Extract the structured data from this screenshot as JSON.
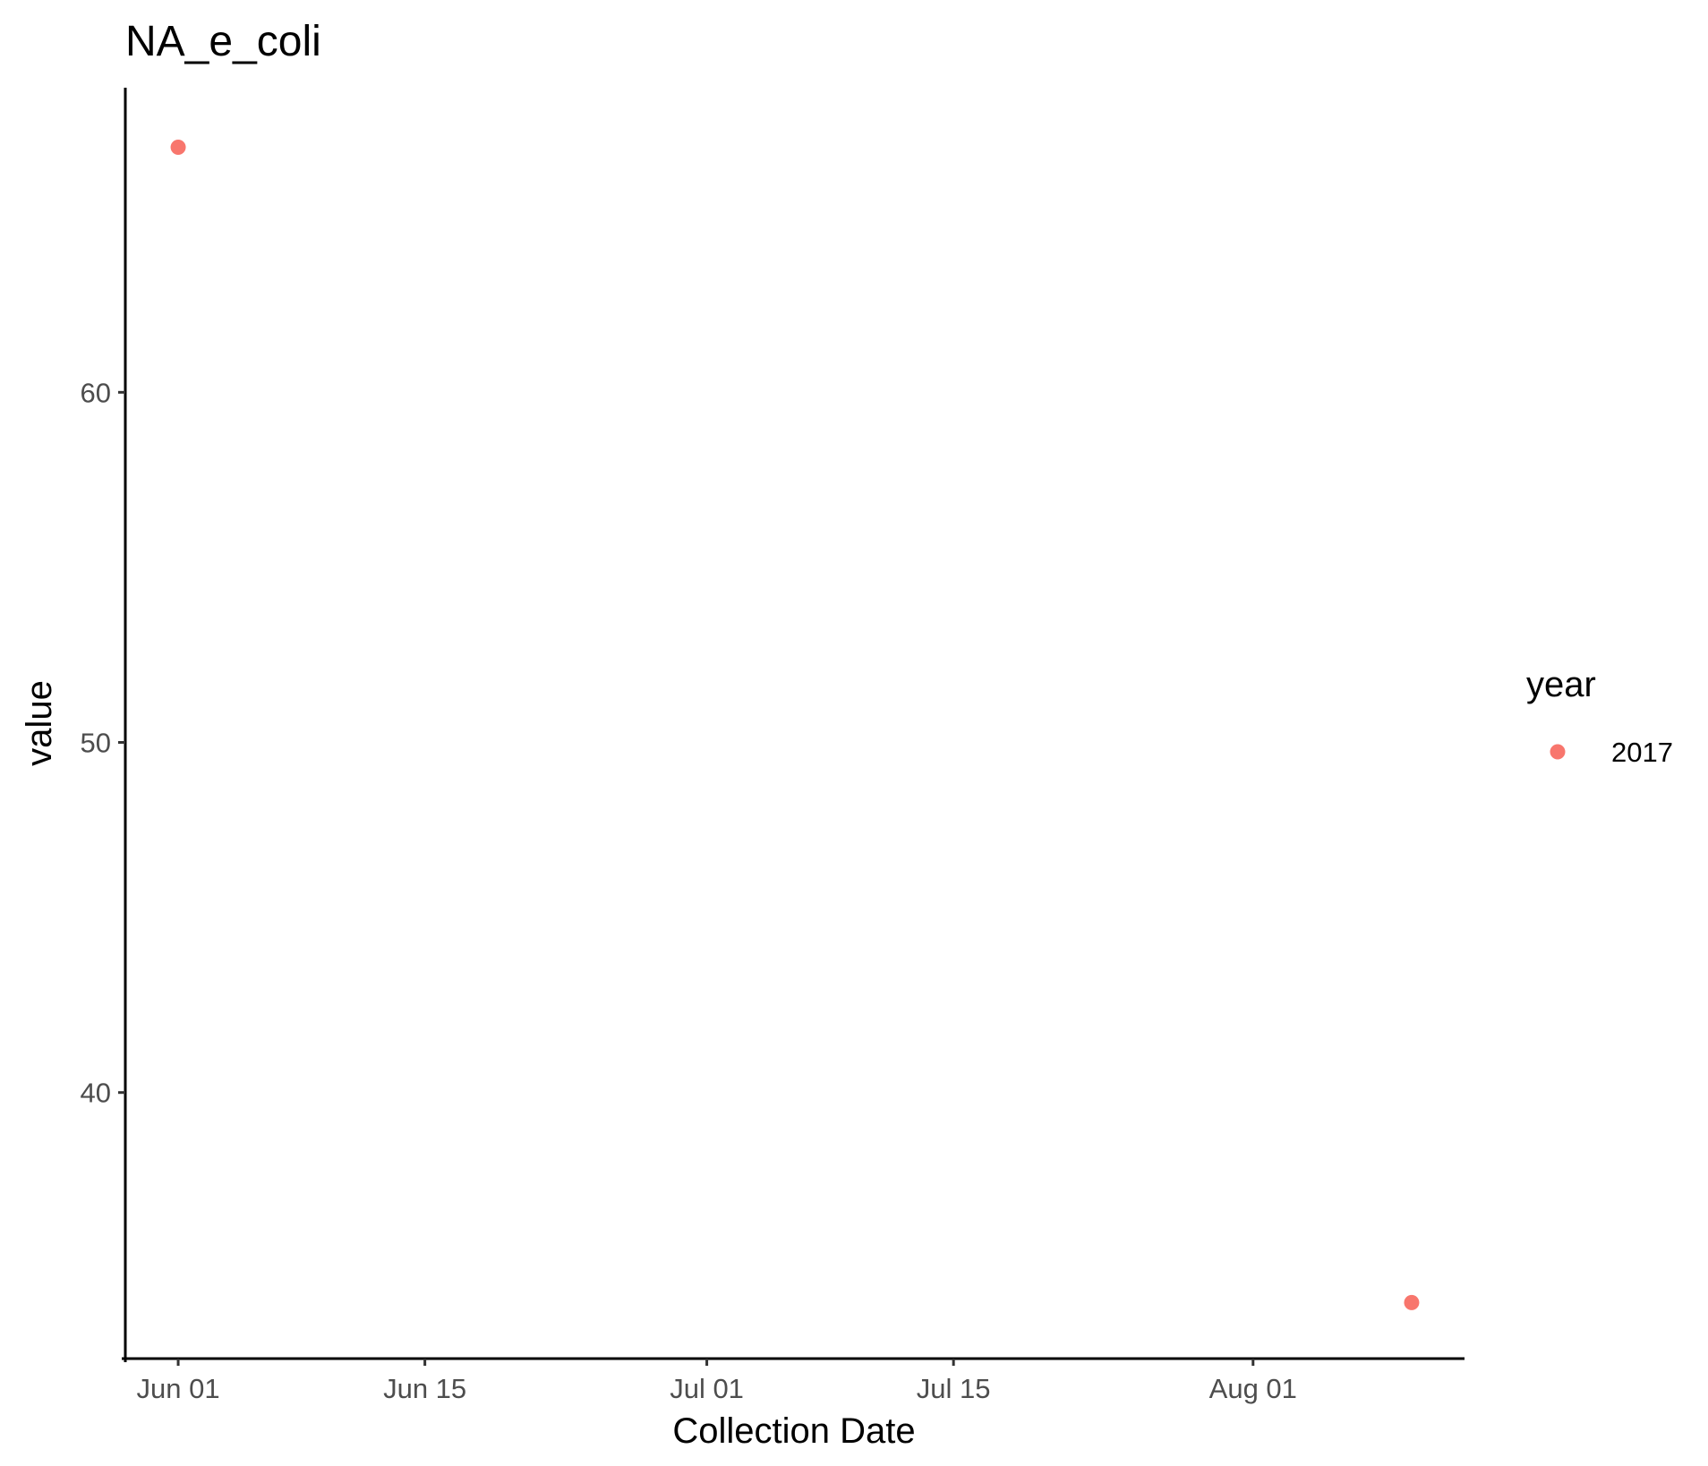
{
  "chart_data": {
    "type": "scatter",
    "title": "NA_e_coli",
    "xlabel": "Collection Date",
    "ylabel": "value",
    "x_type": "date",
    "xlim": [
      "2017-05-29",
      "2017-08-13"
    ],
    "ylim": [
      32.4,
      68.7
    ],
    "x_ticks": [
      {
        "date": "2017-06-01",
        "label": "Jun 01"
      },
      {
        "date": "2017-06-15",
        "label": "Jun 15"
      },
      {
        "date": "2017-07-01",
        "label": "Jul 01"
      },
      {
        "date": "2017-07-15",
        "label": "Jul 15"
      },
      {
        "date": "2017-08-01",
        "label": "Aug 01"
      }
    ],
    "y_ticks": [
      {
        "value": 40,
        "label": "40"
      },
      {
        "value": 50,
        "label": "50"
      },
      {
        "value": 60,
        "label": "60"
      }
    ],
    "series": [
      {
        "name": "2017",
        "color": "#F8766D",
        "points": [
          {
            "x": "2017-06-01",
            "y": 67
          },
          {
            "x": "2017-08-10",
            "y": 34
          }
        ]
      }
    ],
    "legend": {
      "title": "year",
      "position": "right",
      "entries": [
        "2017"
      ]
    },
    "grid": false,
    "axis_color": "#000000"
  }
}
